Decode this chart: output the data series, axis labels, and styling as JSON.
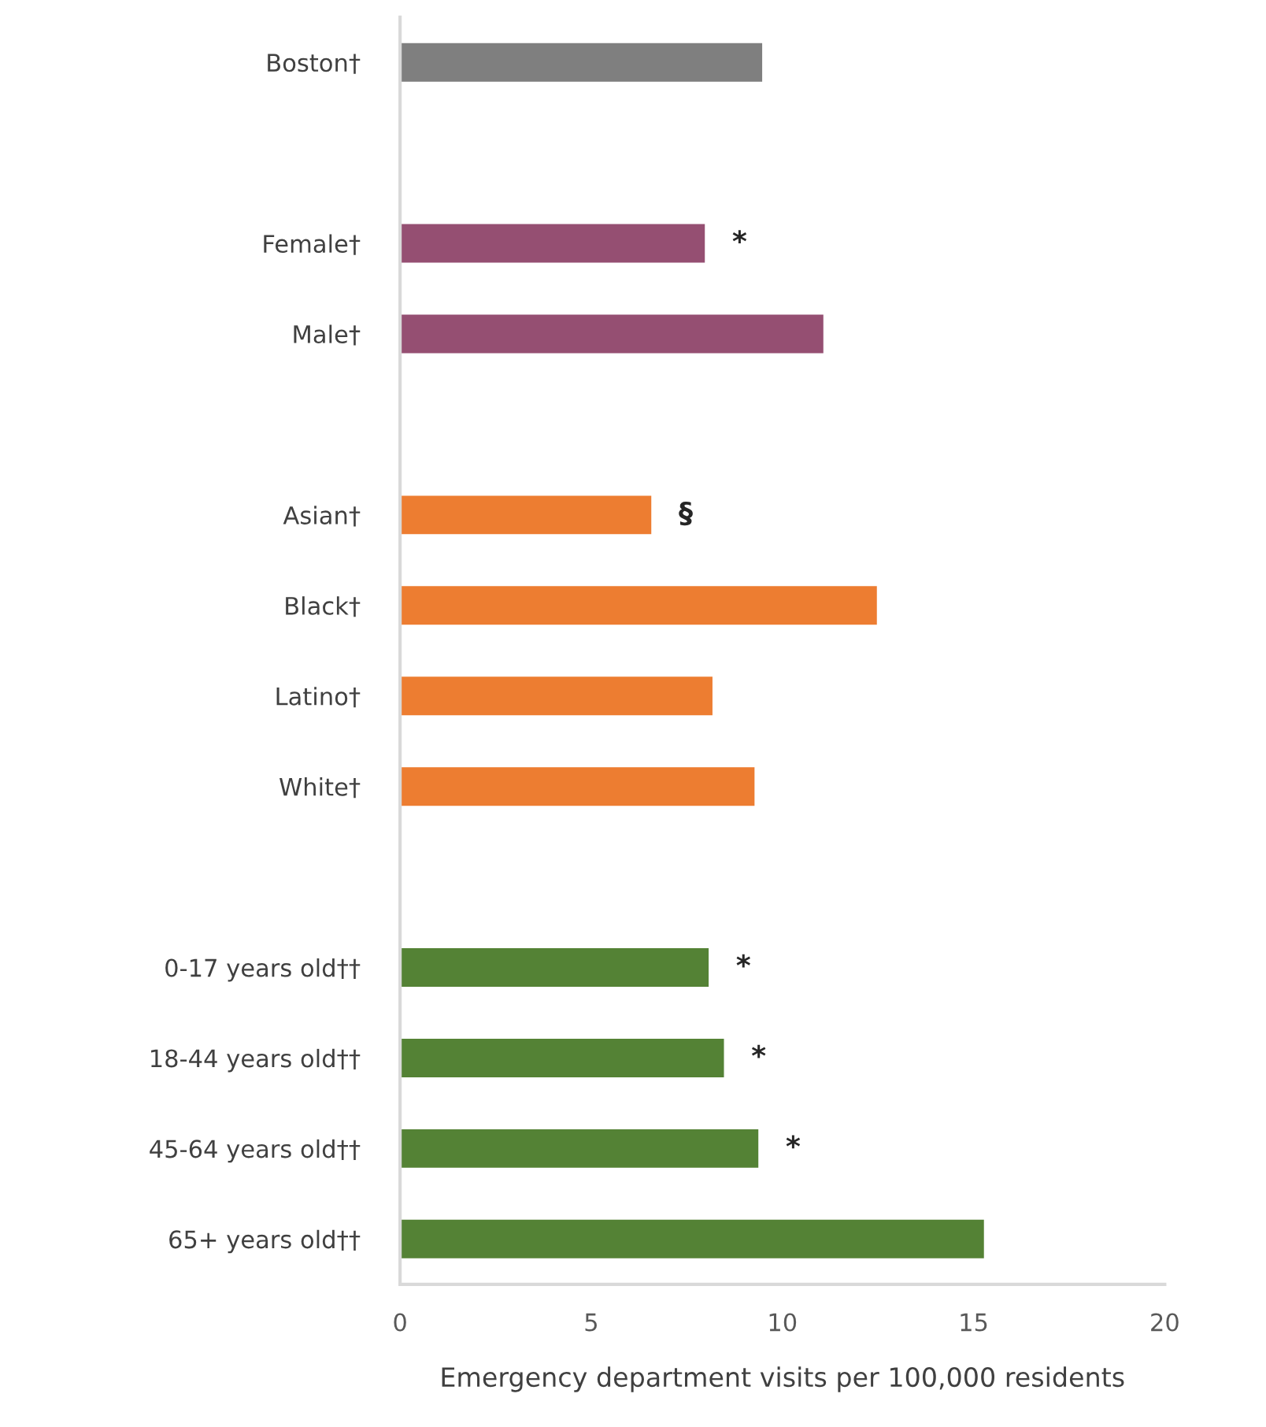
{
  "chart_data": {
    "type": "bar",
    "orientation": "horizontal",
    "xlabel": "Emergency department visits per 100,000 residents",
    "categories": [
      "Boston†",
      null,
      "Female†",
      "Male†",
      null,
      "Asian†",
      "Black†",
      "Latino†",
      "White†",
      null,
      "0-17 years old††",
      "18-44 years old††",
      "45-64 years old††",
      "65+ years old††"
    ],
    "values": [
      9.5,
      null,
      8.0,
      11.1,
      null,
      6.6,
      12.5,
      8.2,
      9.3,
      null,
      8.1,
      8.5,
      9.4,
      15.3
    ],
    "colors": [
      "#7f7f7f",
      null,
      "#954f72",
      "#954f72",
      null,
      "#ed7d31",
      "#ed7d31",
      "#ed7d31",
      "#ed7d31",
      null,
      "#548235",
      "#548235",
      "#548235",
      "#548235"
    ],
    "xlim": [
      0,
      20
    ],
    "xticks": [
      0,
      5,
      10,
      15,
      20
    ],
    "grid": false,
    "legend": false,
    "annotations": [
      {
        "text": "*",
        "x": 8.0,
        "y": "Female†"
      },
      {
        "text": "§",
        "x": 6.6,
        "y": "Asian†"
      },
      {
        "text": "*",
        "x": 8.1,
        "y": "0-17 years old††"
      },
      {
        "text": "*",
        "x": 8.5,
        "y": "18-44 years old††"
      },
      {
        "text": "*",
        "x": 9.4,
        "y": "45-64 years old††"
      }
    ]
  }
}
